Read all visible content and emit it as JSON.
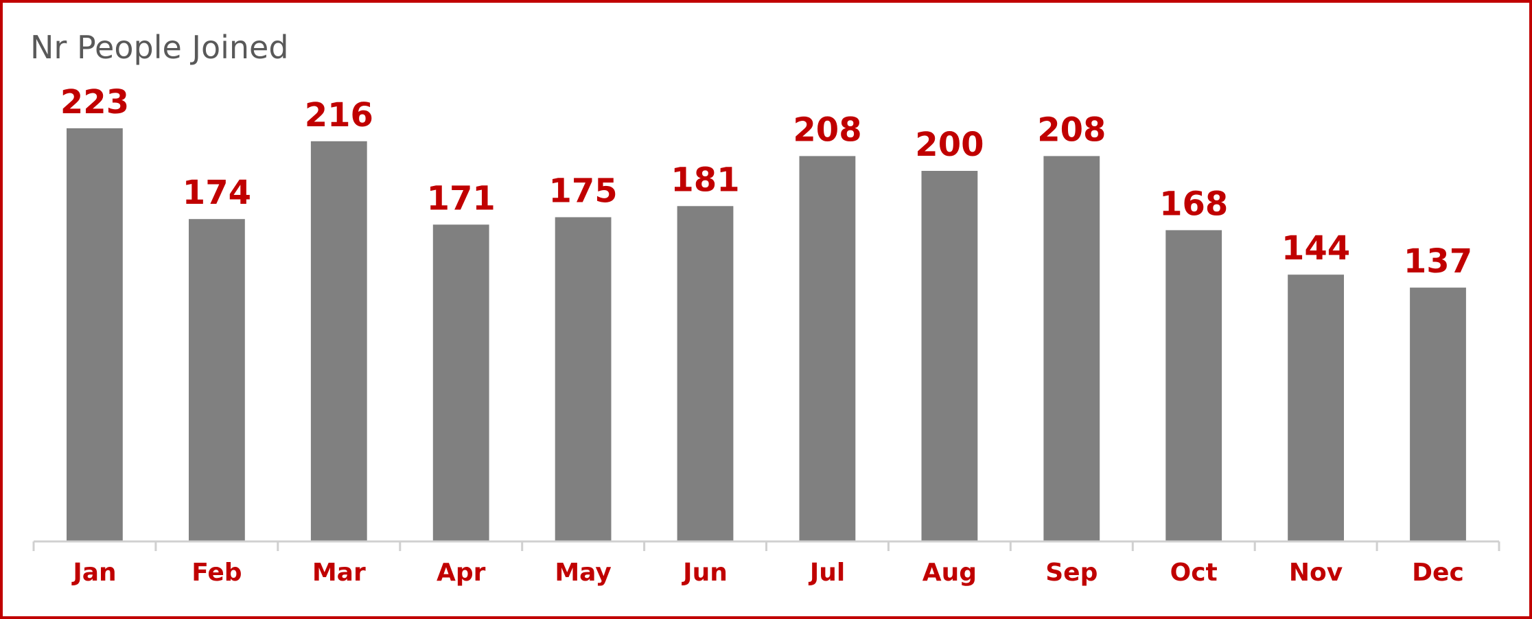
{
  "chart_data": {
    "type": "bar",
    "title": "Nr People Joined",
    "categories": [
      "Jan",
      "Feb",
      "Mar",
      "Apr",
      "May",
      "Jun",
      "Jul",
      "Aug",
      "Sep",
      "Oct",
      "Nov",
      "Dec"
    ],
    "series": [
      {
        "values": [
          223,
          174,
          216,
          171,
          175,
          181,
          208,
          200,
          208,
          168,
          144,
          137
        ]
      }
    ],
    "data_labels": [
      "223",
      "174",
      "216",
      "171",
      "175",
      "181",
      "208",
      "200",
      "208",
      "168",
      "144",
      "137"
    ],
    "ylim": [
      0,
      250
    ],
    "grid": false,
    "legend": "none"
  },
  "colors": {
    "bar": "#808080",
    "label": "#c00000",
    "border": "#c00000",
    "axis": "#d0d0d0",
    "title": "#595959"
  }
}
